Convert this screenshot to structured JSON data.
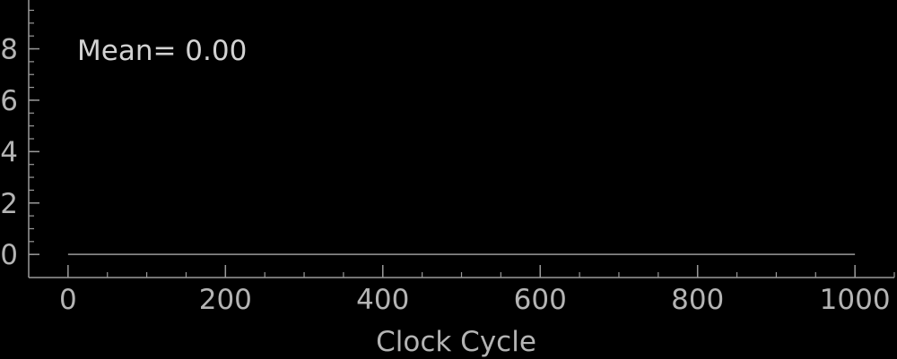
{
  "chart_data": {
    "type": "line",
    "title": "",
    "xlabel": "Clock Cycle",
    "ylabel": "",
    "xlim": [
      -50,
      1050
    ],
    "ylim": [
      -0.9,
      9.9
    ],
    "x_ticks": [
      0,
      200,
      400,
      600,
      800,
      1000
    ],
    "y_ticks": [
      0,
      2,
      4,
      6,
      8
    ],
    "annotation": "Mean=  0.00",
    "grid": false,
    "series": [
      {
        "x": [
          0,
          1000
        ],
        "y": [
          0,
          0
        ]
      }
    ],
    "colors": {
      "background": "#000000",
      "axis": "#9a9a9a",
      "line": "#9a9a9a",
      "text": "#b4b4b4"
    }
  }
}
